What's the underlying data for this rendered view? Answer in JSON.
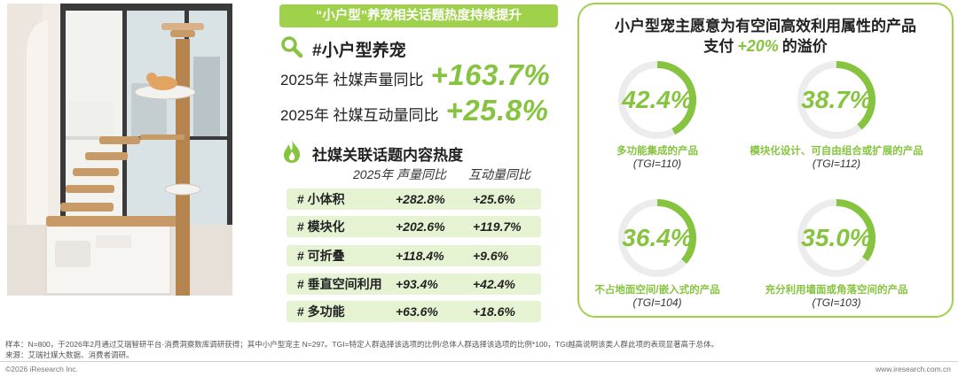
{
  "banner": "“小户型”养宠相关话题热度持续提升",
  "hashtag": "#小户型养宠",
  "stats": [
    {
      "label": "2025年 社媒声量同比",
      "value": "+163.7%"
    },
    {
      "label": "2025年 社媒互动量同比",
      "value": "+25.8%"
    }
  ],
  "heat_title": "社媒关联话题内容热度",
  "table": {
    "headers": [
      "2025年 声量同比",
      "互动量同比"
    ],
    "rows": [
      {
        "tag": "# 小体积",
        "volume": "+282.8%",
        "interaction": "+25.6%"
      },
      {
        "tag": "# 模块化",
        "volume": "+202.6%",
        "interaction": "+119.7%"
      },
      {
        "tag": "# 可折叠",
        "volume": "+118.4%",
        "interaction": "+9.6%"
      },
      {
        "tag": "# 垂直空间利用",
        "volume": "+93.4%",
        "interaction": "+42.4%"
      },
      {
        "tag": "# 多功能",
        "volume": "+63.6%",
        "interaction": "+18.6%"
      }
    ]
  },
  "right": {
    "title_line1": "小户型宠主愿意为有空间高效利用属性的产品",
    "title_pre": "支付",
    "title_highlight": "+20%",
    "title_post": "的溢价"
  },
  "chart_data": {
    "type": "pie",
    "title": "小户型宠主愿意为有空间高效利用属性的产品支付+20%的溢价",
    "charts": [
      {
        "label": "多功能集成的产品",
        "value": 42.4,
        "display": "42.4%",
        "tgi": "(TGI=110)"
      },
      {
        "label": "模块化设计、可自由组合或扩展的产品",
        "value": 38.7,
        "display": "38.7%",
        "tgi": "(TGI=112)"
      },
      {
        "label": "不占地面空间/嵌入式的产品",
        "value": 36.4,
        "display": "36.4%",
        "tgi": "(TGI=104)"
      },
      {
        "label": "充分利用墙面或角落空间的产品",
        "value": 35.0,
        "display": "35.0%",
        "tgi": "(TGI=103)"
      }
    ]
  },
  "colors": {
    "accent": "#86c43f",
    "banner": "#9fd24a",
    "ring_track": "#ececec",
    "row_bg": "#e6f3d3"
  },
  "icons": {
    "search": "search-icon",
    "flame": "flame-icon"
  },
  "footnote1": "样本：N=800，于2026年2月通过艾瑞智研平台·消费洞察数库调研获得；其中小户型宠主 N=297。TGI=特定人群选择该选项的比例/总体人群选择该选项的比例*100，TGI越高说明该类人群此项的表现显著高于总体。",
  "footnote2": "来源：艾瑞社媒大数据、消费者调研。",
  "copyright": "©2026 iResearch Inc.",
  "website": "www.iresearch.com.cn"
}
